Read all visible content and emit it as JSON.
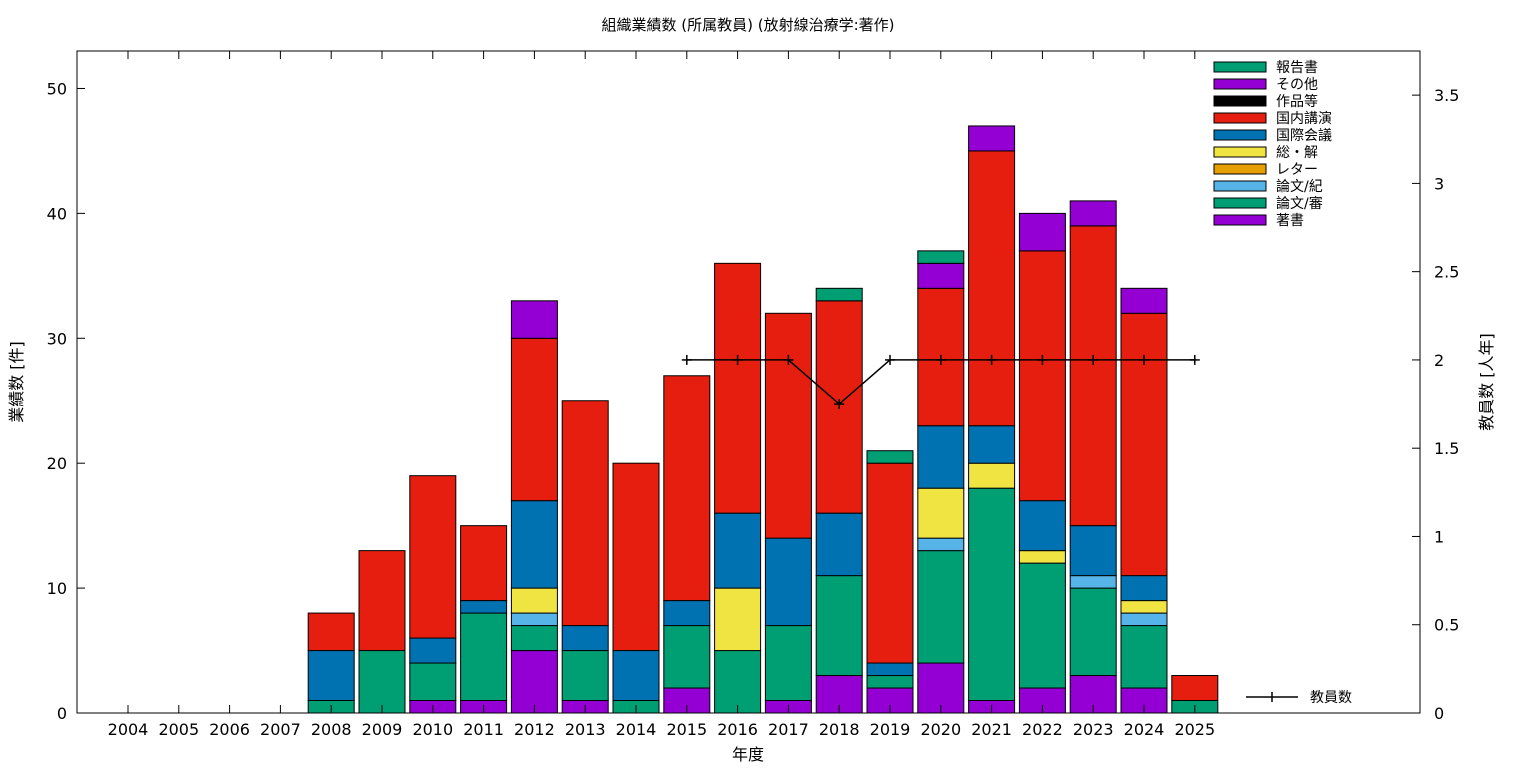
{
  "chart_data": {
    "type": "bar",
    "stacked": true,
    "title": "組織業績数 (所属教員) (放射線治療学:著作)",
    "xlabel": "年度",
    "ylabel": "業績数 [件]",
    "y2label": "教員数 [人年]",
    "ylim": [
      0,
      53
    ],
    "y2lim": [
      0,
      3.75
    ],
    "yticks": [
      0,
      10,
      20,
      30,
      40,
      50
    ],
    "y2ticks": [
      "0",
      "0.5",
      "1",
      "1.5",
      "2",
      "2.5",
      "3",
      "3.5"
    ],
    "grid": false,
    "legend_position": "top-right",
    "categories": [
      "2004",
      "2005",
      "2006",
      "2007",
      "2008",
      "2009",
      "2010",
      "2011",
      "2012",
      "2013",
      "2014",
      "2015",
      "2016",
      "2017",
      "2018",
      "2019",
      "2020",
      "2021",
      "2022",
      "2023",
      "2024",
      "2025"
    ],
    "series": [
      {
        "name": "著書",
        "color": "#9400d3",
        "values": [
          0,
          0,
          0,
          0,
          0,
          0,
          1,
          1,
          5,
          1,
          0,
          2,
          0,
          1,
          3,
          2,
          4,
          1,
          2,
          3,
          2,
          0
        ]
      },
      {
        "name": "論文/審",
        "color": "#009e73",
        "values": [
          0,
          0,
          0,
          0,
          1,
          5,
          3,
          7,
          2,
          4,
          1,
          5,
          5,
          6,
          8,
          1,
          9,
          17,
          10,
          7,
          5,
          1
        ]
      },
      {
        "name": "論文/紀",
        "color": "#56b4e9",
        "values": [
          0,
          0,
          0,
          0,
          0,
          0,
          0,
          0,
          1,
          0,
          0,
          0,
          0,
          0,
          0,
          0,
          1,
          0,
          0,
          1,
          1,
          0
        ]
      },
      {
        "name": "レター",
        "color": "#e69f00",
        "values": [
          0,
          0,
          0,
          0,
          0,
          0,
          0,
          0,
          0,
          0,
          0,
          0,
          0,
          0,
          0,
          0,
          0,
          0,
          0,
          0,
          0,
          0
        ]
      },
      {
        "name": "総・解",
        "color": "#f0e442",
        "values": [
          0,
          0,
          0,
          0,
          0,
          0,
          0,
          0,
          2,
          0,
          0,
          0,
          5,
          0,
          0,
          0,
          4,
          2,
          1,
          0,
          1,
          0
        ]
      },
      {
        "name": "国際会議",
        "color": "#0072b2",
        "values": [
          0,
          0,
          0,
          0,
          4,
          0,
          2,
          1,
          7,
          2,
          4,
          2,
          6,
          7,
          5,
          1,
          5,
          3,
          4,
          4,
          2,
          0
        ]
      },
      {
        "name": "国内講演",
        "color": "#e51e10",
        "values": [
          0,
          0,
          0,
          0,
          3,
          8,
          13,
          6,
          13,
          18,
          15,
          18,
          20,
          18,
          17,
          16,
          11,
          22,
          20,
          24,
          21,
          2
        ]
      },
      {
        "name": "作品等",
        "color": "#000000",
        "values": [
          0,
          0,
          0,
          0,
          0,
          0,
          0,
          0,
          0,
          0,
          0,
          0,
          0,
          0,
          0,
          0,
          0,
          0,
          0,
          0,
          0,
          0
        ]
      },
      {
        "name": "その他",
        "color": "#9400d3",
        "values": [
          0,
          0,
          0,
          0,
          0,
          0,
          0,
          0,
          3,
          0,
          0,
          0,
          0,
          0,
          0,
          0,
          2,
          2,
          3,
          2,
          2,
          0
        ]
      },
      {
        "name": "報告書",
        "color": "#009e73",
        "values": [
          0,
          0,
          0,
          0,
          0,
          0,
          0,
          0,
          0,
          0,
          0,
          0,
          0,
          0,
          1,
          1,
          1,
          0,
          0,
          0,
          0,
          0
        ]
      }
    ],
    "line_series": {
      "name": "教員数",
      "axis": "y2",
      "color": "#000000",
      "x": [
        "2015",
        "2016",
        "2017",
        "2018",
        "2019",
        "2020",
        "2021",
        "2022",
        "2023",
        "2024",
        "2025"
      ],
      "values": [
        2,
        2,
        2,
        1.75,
        2,
        2,
        2,
        2,
        2,
        2,
        2
      ]
    },
    "legend_order": [
      "報告書",
      "その他",
      "作品等",
      "国内講演",
      "国際会議",
      "総・解",
      "レター",
      "論文/紀",
      "論文/審",
      "著書"
    ]
  }
}
